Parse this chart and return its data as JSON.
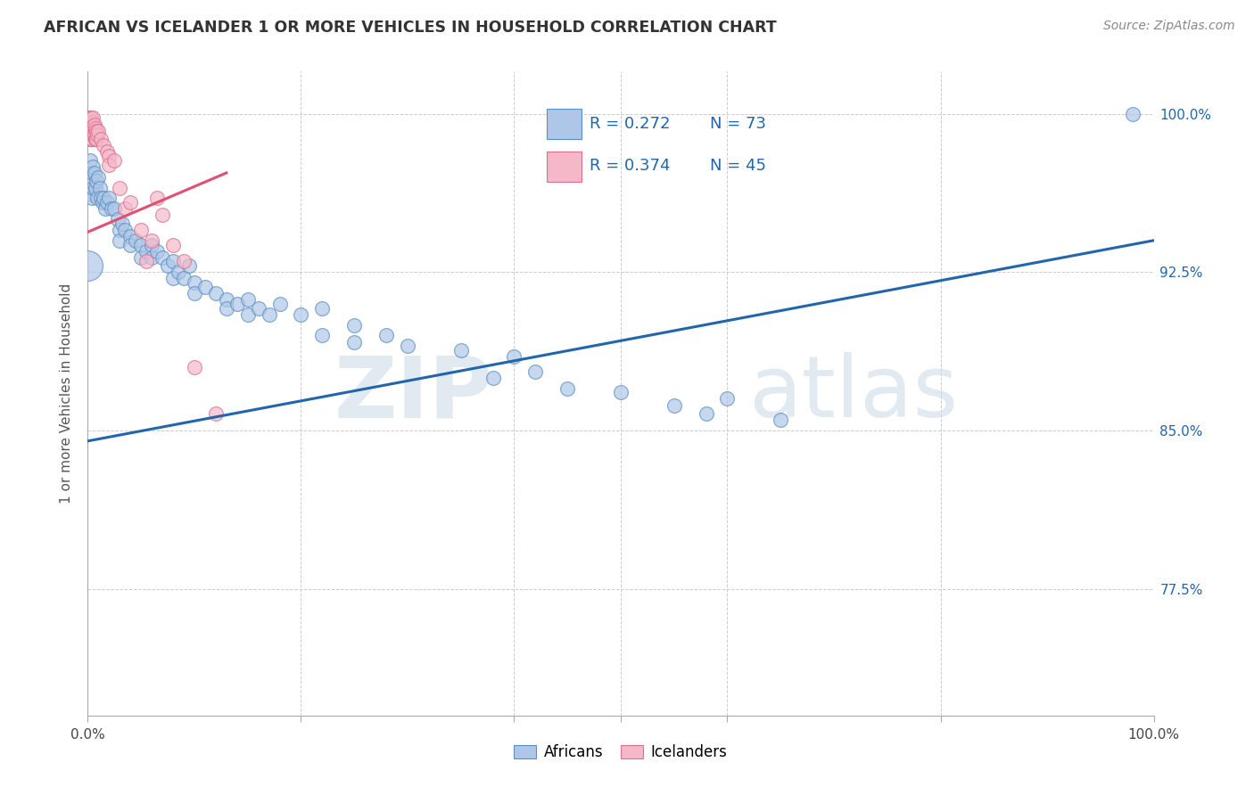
{
  "title": "AFRICAN VS ICELANDER 1 OR MORE VEHICLES IN HOUSEHOLD CORRELATION CHART",
  "source": "Source: ZipAtlas.com",
  "ylabel": "1 or more Vehicles in Household",
  "ytick_labels": [
    "100.0%",
    "92.5%",
    "85.0%",
    "77.5%"
  ],
  "ytick_values": [
    1.0,
    0.925,
    0.85,
    0.775
  ],
  "xlim": [
    0.0,
    1.0
  ],
  "ylim": [
    0.715,
    1.02
  ],
  "legend_blue_r": "R = 0.272",
  "legend_blue_n": "N = 73",
  "legend_pink_r": "R = 0.374",
  "legend_pink_n": "N = 45",
  "legend_label_blue": "Africans",
  "legend_label_pink": "Icelanders",
  "blue_color": "#aec6e8",
  "pink_color": "#f4b8c8",
  "blue_edge_color": "#5a8fc0",
  "pink_edge_color": "#d97090",
  "trendline_blue_color": "#2166ac",
  "trendline_pink_color": "#e05070",
  "watermark_zip": "ZIP",
  "watermark_atlas": "atlas",
  "blue_points": [
    [
      0.002,
      0.978
    ],
    [
      0.003,
      0.968
    ],
    [
      0.003,
      0.962
    ],
    [
      0.004,
      0.972
    ],
    [
      0.004,
      0.96
    ],
    [
      0.005,
      0.975
    ],
    [
      0.005,
      0.965
    ],
    [
      0.006,
      0.972
    ],
    [
      0.007,
      0.965
    ],
    [
      0.008,
      0.968
    ],
    [
      0.009,
      0.96
    ],
    [
      0.01,
      0.97
    ],
    [
      0.011,
      0.965
    ],
    [
      0.012,
      0.96
    ],
    [
      0.014,
      0.958
    ],
    [
      0.015,
      0.96
    ],
    [
      0.016,
      0.955
    ],
    [
      0.018,
      0.958
    ],
    [
      0.02,
      0.96
    ],
    [
      0.022,
      0.955
    ],
    [
      0.025,
      0.955
    ],
    [
      0.028,
      0.95
    ],
    [
      0.03,
      0.945
    ],
    [
      0.03,
      0.94
    ],
    [
      0.032,
      0.948
    ],
    [
      0.035,
      0.945
    ],
    [
      0.04,
      0.942
    ],
    [
      0.04,
      0.938
    ],
    [
      0.045,
      0.94
    ],
    [
      0.05,
      0.938
    ],
    [
      0.05,
      0.932
    ],
    [
      0.055,
      0.935
    ],
    [
      0.06,
      0.938
    ],
    [
      0.06,
      0.932
    ],
    [
      0.065,
      0.935
    ],
    [
      0.07,
      0.932
    ],
    [
      0.075,
      0.928
    ],
    [
      0.08,
      0.93
    ],
    [
      0.08,
      0.922
    ],
    [
      0.085,
      0.925
    ],
    [
      0.09,
      0.922
    ],
    [
      0.095,
      0.928
    ],
    [
      0.1,
      0.92
    ],
    [
      0.1,
      0.915
    ],
    [
      0.11,
      0.918
    ],
    [
      0.12,
      0.915
    ],
    [
      0.13,
      0.912
    ],
    [
      0.13,
      0.908
    ],
    [
      0.14,
      0.91
    ],
    [
      0.15,
      0.912
    ],
    [
      0.15,
      0.905
    ],
    [
      0.16,
      0.908
    ],
    [
      0.17,
      0.905
    ],
    [
      0.18,
      0.91
    ],
    [
      0.2,
      0.905
    ],
    [
      0.22,
      0.895
    ],
    [
      0.22,
      0.908
    ],
    [
      0.25,
      0.9
    ],
    [
      0.25,
      0.892
    ],
    [
      0.28,
      0.895
    ],
    [
      0.3,
      0.89
    ],
    [
      0.35,
      0.888
    ],
    [
      0.38,
      0.875
    ],
    [
      0.4,
      0.885
    ],
    [
      0.42,
      0.878
    ],
    [
      0.45,
      0.87
    ],
    [
      0.5,
      0.868
    ],
    [
      0.55,
      0.862
    ],
    [
      0.58,
      0.858
    ],
    [
      0.6,
      0.865
    ],
    [
      0.65,
      0.855
    ],
    [
      0.98,
      1.0
    ]
  ],
  "pink_points": [
    [
      0.001,
      0.998
    ],
    [
      0.001,
      0.995
    ],
    [
      0.001,
      0.992
    ],
    [
      0.002,
      0.998
    ],
    [
      0.002,
      0.995
    ],
    [
      0.002,
      0.992
    ],
    [
      0.002,
      0.988
    ],
    [
      0.003,
      0.998
    ],
    [
      0.003,
      0.995
    ],
    [
      0.003,
      0.992
    ],
    [
      0.003,
      0.988
    ],
    [
      0.004,
      0.996
    ],
    [
      0.004,
      0.992
    ],
    [
      0.004,
      0.988
    ],
    [
      0.005,
      0.998
    ],
    [
      0.005,
      0.994
    ],
    [
      0.005,
      0.99
    ],
    [
      0.006,
      0.995
    ],
    [
      0.006,
      0.99
    ],
    [
      0.007,
      0.993
    ],
    [
      0.007,
      0.988
    ],
    [
      0.008,
      0.992
    ],
    [
      0.008,
      0.988
    ],
    [
      0.009,
      0.99
    ],
    [
      0.01,
      0.992
    ],
    [
      0.012,
      0.988
    ],
    [
      0.015,
      0.985
    ],
    [
      0.018,
      0.982
    ],
    [
      0.02,
      0.98
    ],
    [
      0.02,
      0.976
    ],
    [
      0.025,
      0.978
    ],
    [
      0.03,
      0.965
    ],
    [
      0.035,
      0.955
    ],
    [
      0.04,
      0.958
    ],
    [
      0.05,
      0.945
    ],
    [
      0.055,
      0.93
    ],
    [
      0.06,
      0.94
    ],
    [
      0.065,
      0.96
    ],
    [
      0.07,
      0.952
    ],
    [
      0.08,
      0.938
    ],
    [
      0.09,
      0.93
    ],
    [
      0.1,
      0.88
    ],
    [
      0.12,
      0.858
    ]
  ],
  "blue_trendline_x": [
    0.0,
    1.0
  ],
  "blue_trendline_y": [
    0.845,
    0.94
  ],
  "pink_trendline_x": [
    0.0,
    0.13
  ],
  "pink_trendline_y": [
    0.944,
    0.972
  ],
  "big_blue_dot": [
    0.0,
    0.928
  ],
  "big_blue_dot_size": 600
}
